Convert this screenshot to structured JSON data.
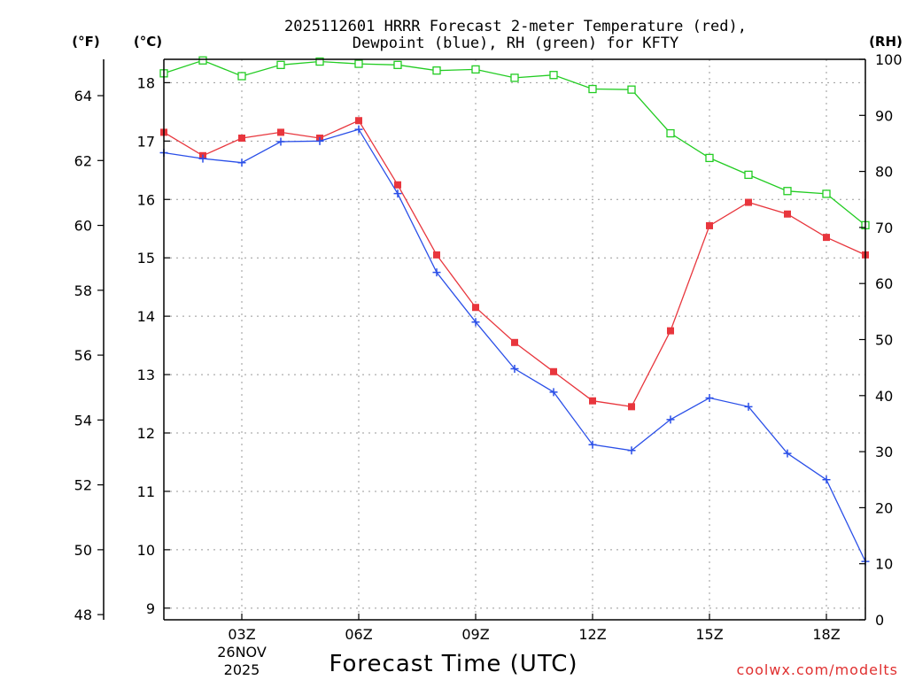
{
  "chart_data": {
    "type": "line",
    "title_line1": "2025112601 HRRR Forecast 2-meter Temperature (red),",
    "title_line2": "Dewpoint (blue), RH (green) for KFTY",
    "xlabel": "Forecast Time (UTC)",
    "credit": "coolwx.com/modelts",
    "units": {
      "fahrenheit": "(°F)",
      "celsius": "(°C)",
      "rh": "(RH)"
    },
    "x_hours": [
      1,
      2,
      3,
      4,
      5,
      6,
      7,
      8,
      9,
      10,
      11,
      12,
      13,
      14,
      15,
      16,
      17,
      18,
      19
    ],
    "x_ticks": [
      {
        "hour": 3,
        "label": "03Z",
        "date_line1": "26NOV",
        "date_line2": "2025"
      },
      {
        "hour": 6,
        "label": "06Z"
      },
      {
        "hour": 9,
        "label": "09Z"
      },
      {
        "hour": 12,
        "label": "12Z"
      },
      {
        "hour": 15,
        "label": "15Z"
      },
      {
        "hour": 18,
        "label": "18Z"
      }
    ],
    "xlim": [
      1,
      19
    ],
    "celsius_ticks": [
      "9",
      "10",
      "11",
      "12",
      "13",
      "14",
      "15",
      "16",
      "17",
      "18"
    ],
    "ylim_celsius": [
      8.8,
      18.4
    ],
    "fahrenheit_ticks": [
      "48",
      "50",
      "52",
      "54",
      "56",
      "58",
      "60",
      "62",
      "64"
    ],
    "rh_ticks": [
      "0",
      "10",
      "20",
      "30",
      "40",
      "50",
      "60",
      "70",
      "80",
      "90",
      "100"
    ],
    "ylim_rh": [
      0,
      100
    ],
    "series": [
      {
        "name": "Temperature",
        "unit": "C",
        "color": "#e8363d",
        "marker": "filled-square",
        "values": [
          17.15,
          16.75,
          17.05,
          17.15,
          17.05,
          17.35,
          16.25,
          15.05,
          14.15,
          13.55,
          13.05,
          12.55,
          12.45,
          13.75,
          15.55,
          15.95,
          15.75,
          15.35,
          15.05
        ]
      },
      {
        "name": "Dewpoint",
        "unit": "C",
        "color": "#2a4fe8",
        "marker": "plus",
        "values": [
          16.8,
          16.7,
          16.63,
          16.99,
          17.0,
          17.2,
          16.1,
          14.75,
          13.9,
          13.1,
          12.7,
          11.8,
          11.7,
          12.23,
          12.6,
          12.45,
          11.65,
          11.2,
          9.8
        ]
      },
      {
        "name": "RH",
        "unit": "%",
        "color": "#22cc22",
        "marker": "open-square",
        "values": [
          97.5,
          99.8,
          97.0,
          99.0,
          99.6,
          99.2,
          99.0,
          98.0,
          98.2,
          96.7,
          97.2,
          94.7,
          94.6,
          86.8,
          82.4,
          79.4,
          76.5,
          76.0,
          70.4
        ]
      }
    ]
  }
}
